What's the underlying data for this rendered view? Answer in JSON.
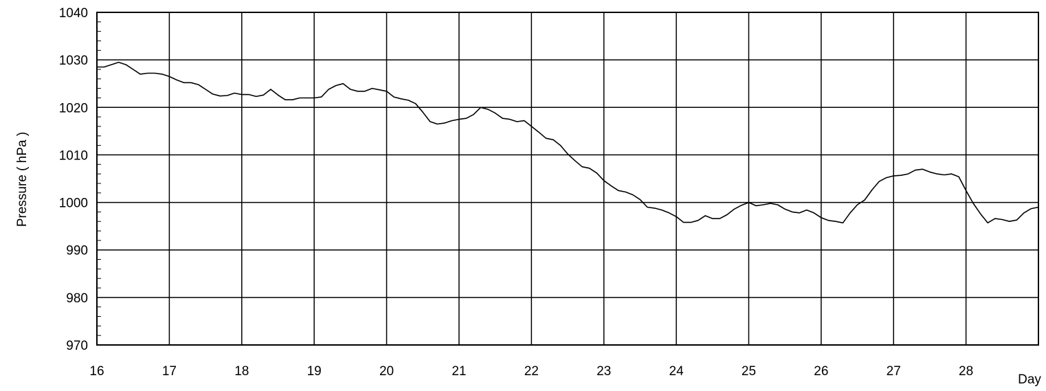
{
  "chart_data": {
    "type": "line",
    "title": "",
    "xlabel": "Day",
    "ylabel": "Pressure ( hPa )",
    "xlim": [
      16,
      29
    ],
    "ylim": [
      970,
      1040
    ],
    "x_ticks": [
      16,
      17,
      18,
      19,
      20,
      21,
      22,
      23,
      24,
      25,
      26,
      27,
      28
    ],
    "y_ticks": [
      970,
      980,
      990,
      1000,
      1010,
      1020,
      1030,
      1040
    ],
    "grid": true,
    "line_color": "#000000",
    "series": [
      {
        "x": [
          16.0,
          16.1,
          16.2,
          16.3,
          16.4,
          16.5,
          16.6,
          16.7,
          16.8,
          16.9,
          17.0,
          17.1,
          17.2,
          17.3,
          17.4,
          17.5,
          17.6,
          17.7,
          17.8,
          17.9,
          18.0,
          18.1,
          18.2,
          18.3,
          18.4,
          18.5,
          18.6,
          18.7,
          18.8,
          18.9,
          19.0,
          19.1,
          19.2,
          19.3,
          19.4,
          19.5,
          19.6,
          19.7,
          19.8,
          19.9,
          20.0,
          20.1,
          20.2,
          20.3,
          20.4,
          20.5,
          20.6,
          20.7,
          20.8,
          20.9,
          21.0,
          21.1,
          21.2,
          21.3,
          21.4,
          21.5,
          21.6,
          21.7,
          21.8,
          21.9,
          22.0,
          22.1,
          22.2,
          22.3,
          22.4,
          22.5,
          22.6,
          22.7,
          22.8,
          22.9,
          23.0,
          23.1,
          23.2,
          23.3,
          23.4,
          23.5,
          23.6,
          23.7,
          23.8,
          23.9,
          24.0,
          24.1,
          24.2,
          24.3,
          24.4,
          24.5,
          24.6,
          24.7,
          24.8,
          24.9,
          25.0,
          25.1,
          25.2,
          25.3,
          25.4,
          25.5,
          25.6,
          25.7,
          25.8,
          25.9,
          26.0,
          26.1,
          26.2,
          26.3,
          26.4,
          26.5,
          26.6,
          26.7,
          26.8,
          26.9,
          27.0,
          27.1,
          27.2,
          27.3,
          27.4,
          27.5,
          27.6,
          27.7,
          27.8,
          27.9,
          28.0,
          28.1,
          28.2,
          28.3,
          28.4,
          28.5,
          28.6,
          28.7,
          28.8,
          28.9,
          29.0
        ],
        "values": [
          1028.5,
          1028.5,
          1029.0,
          1029.5,
          1029.0,
          1028.0,
          1027.0,
          1027.2,
          1027.2,
          1027.0,
          1026.5,
          1025.8,
          1025.2,
          1025.2,
          1024.8,
          1023.8,
          1022.8,
          1022.4,
          1022.5,
          1023.0,
          1022.7,
          1022.7,
          1022.3,
          1022.6,
          1023.8,
          1022.6,
          1021.6,
          1021.6,
          1022.0,
          1022.0,
          1022.0,
          1022.2,
          1023.8,
          1024.6,
          1025.0,
          1023.8,
          1023.4,
          1023.4,
          1024.0,
          1023.7,
          1023.4,
          1022.2,
          1021.8,
          1021.5,
          1020.8,
          1019.0,
          1017.0,
          1016.5,
          1016.7,
          1017.2,
          1017.5,
          1017.7,
          1018.5,
          1020.0,
          1019.6,
          1018.8,
          1017.7,
          1017.5,
          1017.0,
          1017.2,
          1016.0,
          1014.8,
          1013.5,
          1013.2,
          1012.0,
          1010.2,
          1008.8,
          1007.5,
          1007.2,
          1006.2,
          1004.6,
          1003.5,
          1002.5,
          1002.2,
          1001.6,
          1000.6,
          999.0,
          998.8,
          998.4,
          997.8,
          997.0,
          995.8,
          995.8,
          996.2,
          997.2,
          996.6,
          996.6,
          997.4,
          998.6,
          999.4,
          1000.0,
          999.3,
          999.5,
          999.8,
          999.5,
          998.6,
          998.0,
          997.8,
          998.4,
          997.8,
          996.8,
          996.2,
          996.0,
          995.7,
          997.8,
          999.5,
          1000.5,
          1002.6,
          1004.4,
          1005.2,
          1005.6,
          1005.7,
          1006.0,
          1006.8,
          1007.0,
          1006.4,
          1006.0,
          1005.8,
          1006.0,
          1005.4,
          1002.5,
          999.8,
          997.6,
          995.7,
          996.6,
          996.4,
          996.0,
          996.3,
          997.8,
          998.7,
          999.0
        ]
      }
    ]
  }
}
